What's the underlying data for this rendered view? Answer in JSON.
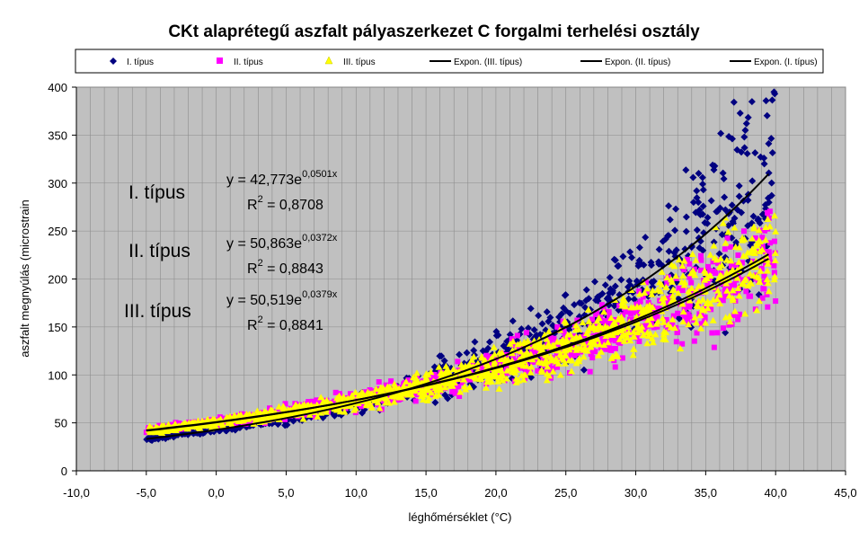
{
  "chart_data": {
    "type": "scatter",
    "title": "CKt alaprétegű aszfalt pályaszerkezet C forgalmi terhelési osztály",
    "xlabel": "léghőmérséklet (°C)",
    "ylabel": "aszfalt megnyúlás (microstrain",
    "xlim": [
      -10,
      45
    ],
    "ylim": [
      0,
      400
    ],
    "x_ticks": [
      "-10,0",
      "-5,0",
      "0,0",
      "5,0",
      "10,0",
      "15,0",
      "20,0",
      "25,0",
      "30,0",
      "35,0",
      "40,0",
      "45,0"
    ],
    "y_ticks": [
      "0",
      "50",
      "100",
      "150",
      "200",
      "250",
      "300",
      "350",
      "400"
    ],
    "grid": true,
    "legend_position": "top",
    "series": [
      {
        "name": "I. típus",
        "marker": "diamond",
        "color": "#000080",
        "x_range": [
          -5,
          40
        ],
        "sample_points": [
          [
            -5,
            45
          ],
          [
            0,
            47
          ],
          [
            5,
            50
          ],
          [
            10,
            55
          ],
          [
            15,
            65
          ],
          [
            20,
            110
          ],
          [
            25,
            190
          ],
          [
            28,
            250
          ],
          [
            30,
            260
          ],
          [
            33,
            300
          ],
          [
            35,
            330
          ],
          [
            37,
            375
          ],
          [
            40,
            310
          ]
        ]
      },
      {
        "name": "II. típus",
        "marker": "square",
        "color": "#ff00ff",
        "x_range": [
          -5,
          40
        ],
        "sample_points": [
          [
            -5,
            50
          ],
          [
            0,
            58
          ],
          [
            5,
            75
          ],
          [
            10,
            80
          ],
          [
            15,
            95
          ],
          [
            20,
            115
          ],
          [
            25,
            150
          ],
          [
            30,
            190
          ],
          [
            35,
            200
          ],
          [
            37,
            270
          ],
          [
            40,
            225
          ]
        ]
      },
      {
        "name": "III. típus",
        "marker": "triangle",
        "color": "#ffff00",
        "x_range": [
          -5,
          40
        ],
        "sample_points": [
          [
            -5,
            50
          ],
          [
            0,
            56
          ],
          [
            5,
            72
          ],
          [
            10,
            80
          ],
          [
            15,
            95
          ],
          [
            20,
            115
          ],
          [
            25,
            150
          ],
          [
            30,
            185
          ],
          [
            35,
            220
          ],
          [
            37,
            255
          ],
          [
            40,
            230
          ]
        ]
      }
    ],
    "trendlines": [
      {
        "name": "Expon. (III. típus)",
        "a": 50.519,
        "b": 0.0379
      },
      {
        "name": "Expon. (II. típus)",
        "a": 50.863,
        "b": 0.0372
      },
      {
        "name": "Expon. (I. típus)",
        "a": 42.773,
        "b": 0.0501
      }
    ],
    "annotations": [
      {
        "label": "I. típus",
        "eq_base": "y = 42,773e",
        "eq_exp": "0,0501x",
        "r2_label": "R",
        "r2_sup": "2",
        "r2_value": " = 0,8708"
      },
      {
        "label": "II. típus",
        "eq_base": "y = 50,863e",
        "eq_exp": "0,0372x",
        "r2_label": "R",
        "r2_sup": "2",
        "r2_value": " = 0,8843"
      },
      {
        "label": "III. típus",
        "eq_base": "y = 50,519e",
        "eq_exp": "0,0379x",
        "r2_label": "R",
        "r2_sup": "2",
        "r2_value": " = 0,8841"
      }
    ],
    "colors": {
      "plot_bg": "#c0c0c0",
      "grid": "#8c8c8c",
      "trend": "#000000"
    }
  }
}
